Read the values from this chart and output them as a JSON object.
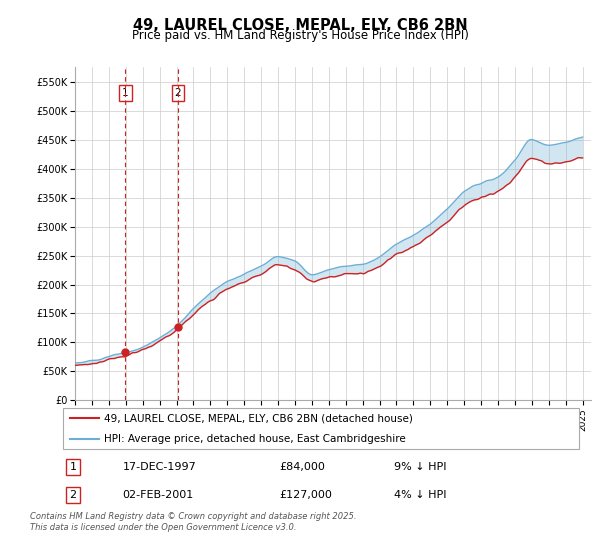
{
  "title": "49, LAUREL CLOSE, MEPAL, ELY, CB6 2BN",
  "subtitle": "Price paid vs. HM Land Registry's House Price Index (HPI)",
  "ylim": [
    0,
    575000
  ],
  "yticks": [
    0,
    50000,
    100000,
    150000,
    200000,
    250000,
    300000,
    350000,
    400000,
    450000,
    500000,
    550000
  ],
  "ytick_labels": [
    "£0",
    "£50K",
    "£100K",
    "£150K",
    "£200K",
    "£250K",
    "£300K",
    "£350K",
    "£400K",
    "£450K",
    "£500K",
    "£550K"
  ],
  "sale_prices": [
    84000,
    127000
  ],
  "sale_years": [
    1997.96,
    2001.09
  ],
  "vline_years": [
    1997.96,
    2001.09
  ],
  "table_rows": [
    [
      "1",
      "17-DEC-1997",
      "£84,000",
      "9% ↓ HPI"
    ],
    [
      "2",
      "02-FEB-2001",
      "£127,000",
      "4% ↓ HPI"
    ]
  ],
  "legend_entries": [
    "49, LAUREL CLOSE, MEPAL, ELY, CB6 2BN (detached house)",
    "HPI: Average price, detached house, East Cambridgeshire"
  ],
  "footnote": "Contains HM Land Registry data © Crown copyright and database right 2025.\nThis data is licensed under the Open Government Licence v3.0.",
  "hpi_line_color": "#6baed6",
  "price_line_color": "#cc2222",
  "sale_marker_color": "#cc2222",
  "vline_color": "#cc2222",
  "background_color": "#ffffff",
  "grid_color": "#cccccc",
  "title_fontsize": 10.5,
  "subtitle_fontsize": 8.5,
  "tick_fontsize": 7,
  "legend_fontsize": 7.5,
  "table_fontsize": 8,
  "footnote_fontsize": 6.0,
  "x_start_year": 1995,
  "x_end_year": 2025
}
